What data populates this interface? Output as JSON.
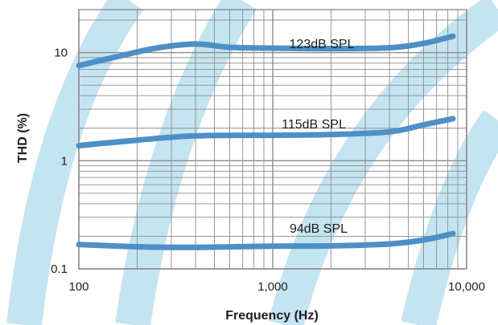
{
  "chart_data": {
    "type": "line",
    "title": "",
    "xlabel": "Frequency (Hz)",
    "ylabel": "THD (%)",
    "x_scale": "log",
    "y_scale": "log",
    "xlim": [
      100,
      10000
    ],
    "ylim": [
      0.1,
      25
    ],
    "grid": true,
    "x_ticks": [
      {
        "value": 100,
        "label": "100"
      },
      {
        "value": 1000,
        "label": "1,000"
      },
      {
        "value": 10000,
        "label": "10,000"
      }
    ],
    "y_ticks": [
      {
        "value": 0.1,
        "label": "0.1"
      },
      {
        "value": 1,
        "label": "1"
      },
      {
        "value": 10,
        "label": "10"
      }
    ],
    "colors": {
      "line": "#4d90c6",
      "grid": "#8c8c8c",
      "background_bands": "#c4e4f1",
      "text": "#1e1e1e"
    },
    "series": [
      {
        "name": "123dB SPL",
        "x": [
          100,
          150,
          250,
          400,
          600,
          1000,
          2000,
          4000,
          6000,
          8500
        ],
        "y": [
          7.6,
          9.0,
          11.0,
          12.0,
          11.2,
          11.0,
          10.9,
          11.1,
          12.2,
          14.2
        ]
      },
      {
        "name": "115dB SPL",
        "x": [
          100,
          200,
          400,
          1000,
          2000,
          4000,
          6000,
          8500
        ],
        "y": [
          1.38,
          1.55,
          1.7,
          1.72,
          1.75,
          1.85,
          2.15,
          2.45
        ]
      },
      {
        "name": "94dB SPL",
        "x": [
          100,
          200,
          400,
          1000,
          2000,
          4000,
          6000,
          8500
        ],
        "y": [
          0.168,
          0.16,
          0.158,
          0.162,
          0.163,
          0.17,
          0.185,
          0.212
        ]
      }
    ]
  }
}
